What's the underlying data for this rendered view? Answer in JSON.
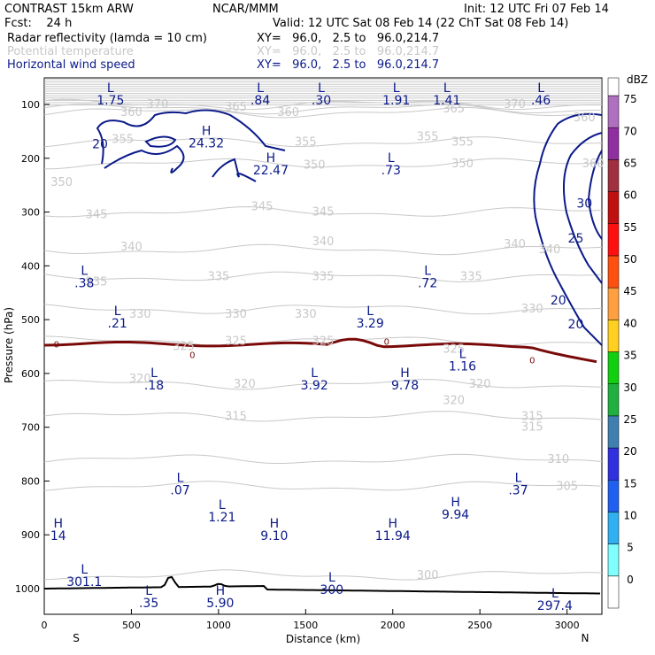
{
  "header": {
    "title": "CONTRAST 15km ARW",
    "center": "NCAR/MMM",
    "init": "Init: 12 UTC Fri 07 Feb 14",
    "fcst": "Fcst:    24 h",
    "valid": "Valid: 12 UTC Sat 08 Feb 14 (22 ChT Sat 08 Feb 14)"
  },
  "fields": [
    {
      "name": "Radar reflectivity (lamda = 10 cm)",
      "xy": "XY=   96.0,   2.5 to   96.0,214.7"
    },
    {
      "name": "Potential temperature",
      "xy": "XY=   96.0,   2.5 to   96.0,214.7"
    },
    {
      "name": "Horizontal wind speed",
      "xy": "XY=   96.0,   2.5 to   96.0,214.7"
    }
  ],
  "colors": {
    "theta": "#c8c8c8",
    "wind": "#0b1a8a",
    "zero_line": "#7a0a0a",
    "terrain": "#000000"
  },
  "chart_data": {
    "type": "cross-section",
    "xlabel": "Distance (km)",
    "ylabel": "Pressure (hPa)",
    "xlim": [
      0,
      3200
    ],
    "ylim": [
      1050,
      50
    ],
    "xticks": [
      0,
      500,
      1000,
      1500,
      2000,
      2500,
      3000
    ],
    "yticks": [
      100,
      200,
      300,
      400,
      500,
      600,
      700,
      800,
      900,
      1000
    ],
    "x_end_labels": {
      "left": "S",
      "right": "N"
    },
    "colorbar": {
      "unit": "dBZ",
      "levels": [
        0,
        5,
        10,
        15,
        20,
        25,
        30,
        35,
        40,
        45,
        50,
        55,
        60,
        65,
        70,
        75
      ],
      "colors": [
        "#ffffff",
        "#80ffff",
        "#30b0f0",
        "#2060f0",
        "#3030e0",
        "#4080b0",
        "#20b040",
        "#10d010",
        "#ffd020",
        "#ffa040",
        "#ff5010",
        "#ff1010",
        "#c01010",
        "#a03040",
        "#9030a0",
        "#b070c0"
      ]
    },
    "theta_contours": [
      {
        "label": "300",
        "x": 2200,
        "p": 975
      },
      {
        "label": "305",
        "x": 3000,
        "p": 810
      },
      {
        "label": "310",
        "x": 2950,
        "p": 760
      },
      {
        "label": "315",
        "x": 2800,
        "p": 680
      },
      {
        "label": "320",
        "x": 2500,
        "p": 620
      },
      {
        "label": "325",
        "x": 1600,
        "p": 540
      },
      {
        "label": "330",
        "x": 2800,
        "p": 480
      },
      {
        "label": "335",
        "x": 1600,
        "p": 420
      },
      {
        "label": "340",
        "x": 2900,
        "p": 370
      },
      {
        "label": "345",
        "x": 1600,
        "p": 300
      },
      {
        "label": "350",
        "x": 2400,
        "p": 210
      },
      {
        "label": "355",
        "x": 2400,
        "p": 170
      },
      {
        "label": "360",
        "x": 1400,
        "p": 115
      },
      {
        "label": "365",
        "x": 2350,
        "p": 108
      },
      {
        "label": "370",
        "x": 2700,
        "p": 100
      }
    ],
    "theta_extra_labels": [
      {
        "label": "350",
        "x": 100,
        "p": 245
      },
      {
        "label": "345",
        "x": 300,
        "p": 305
      },
      {
        "label": "340",
        "x": 500,
        "p": 365
      },
      {
        "label": "335",
        "x": 1000,
        "p": 420
      },
      {
        "label": "330",
        "x": 1100,
        "p": 490
      },
      {
        "label": "325",
        "x": 1100,
        "p": 540
      },
      {
        "label": "320",
        "x": 1150,
        "p": 620
      },
      {
        "label": "315",
        "x": 1100,
        "p": 680
      },
      {
        "label": "320",
        "x": 2350,
        "p": 650
      },
      {
        "label": "315",
        "x": 2800,
        "p": 700
      },
      {
        "label": "335",
        "x": 2450,
        "p": 420
      },
      {
        "label": "345",
        "x": 1250,
        "p": 290
      },
      {
        "label": "340",
        "x": 1600,
        "p": 355
      },
      {
        "label": "330",
        "x": 1500,
        "p": 490
      },
      {
        "label": "325",
        "x": 2350,
        "p": 555
      },
      {
        "label": "350",
        "x": 1550,
        "p": 213
      },
      {
        "label": "355",
        "x": 1500,
        "p": 170
      },
      {
        "label": "355",
        "x": 2200,
        "p": 160
      },
      {
        "label": "325",
        "x": 800,
        "p": 550
      },
      {
        "label": "360",
        "x": 500,
        "p": 115
      },
      {
        "label": "365",
        "x": 1100,
        "p": 105
      },
      {
        "label": "355",
        "x": 450,
        "p": 165
      },
      {
        "label": "360",
        "x": 3100,
        "p": 125
      },
      {
        "label": "360",
        "x": 3150,
        "p": 210
      },
      {
        "label": "330",
        "x": 550,
        "p": 490
      },
      {
        "label": "320",
        "x": 550,
        "p": 610
      },
      {
        "label": "340",
        "x": 2700,
        "p": 360
      },
      {
        "label": "335",
        "x": 300,
        "p": 430
      },
      {
        "label": "370",
        "x": 650,
        "p": 100
      }
    ],
    "wind_contours": [
      {
        "label": "20",
        "x": 320,
        "p": 175
      },
      {
        "label": "30",
        "x": 3100,
        "p": 285
      },
      {
        "label": "25",
        "x": 3050,
        "p": 350
      },
      {
        "label": "20",
        "x": 2950,
        "p": 465
      },
      {
        "label": "20",
        "x": 3050,
        "p": 510
      }
    ],
    "zero_line_labels": [
      {
        "label": "0",
        "x": 70,
        "p": 545
      },
      {
        "label": "0",
        "x": 850,
        "p": 565
      },
      {
        "label": "0",
        "x": 1965,
        "p": 540
      },
      {
        "label": "0",
        "x": 2800,
        "p": 575
      }
    ],
    "extrema": [
      {
        "type": "L",
        "value": "1.75",
        "x": 380,
        "p": 80
      },
      {
        "type": "L",
        "value": ".84",
        "x": 1240,
        "p": 80
      },
      {
        "type": "L",
        "value": ".30",
        "x": 1590,
        "p": 80
      },
      {
        "type": "L",
        "value": "1.91",
        "x": 2020,
        "p": 80
      },
      {
        "type": "L",
        "value": "1.41",
        "x": 2310,
        "p": 80
      },
      {
        "type": "L",
        "value": ".46",
        "x": 2850,
        "p": 80
      },
      {
        "type": "H",
        "value": "24.32",
        "x": 930,
        "p": 160
      },
      {
        "type": "H",
        "value": "22.47",
        "x": 1300,
        "p": 210
      },
      {
        "type": "L",
        "value": ".73",
        "x": 1990,
        "p": 210
      },
      {
        "type": "L",
        "value": ".38",
        "x": 230,
        "p": 420
      },
      {
        "type": "L",
        "value": ".72",
        "x": 2200,
        "p": 420
      },
      {
        "type": "L",
        "value": ".21",
        "x": 420,
        "p": 495
      },
      {
        "type": "L",
        "value": "3.29",
        "x": 1870,
        "p": 495
      },
      {
        "type": "L",
        "value": "1.16",
        "x": 2400,
        "p": 575
      },
      {
        "type": "L",
        "value": ".18",
        "x": 630,
        "p": 610
      },
      {
        "type": "L",
        "value": "3.92",
        "x": 1550,
        "p": 610
      },
      {
        "type": "H",
        "value": "9.78",
        "x": 2070,
        "p": 610
      },
      {
        "type": "L",
        "value": ".07",
        "x": 780,
        "p": 805
      },
      {
        "type": "L",
        "value": ".37",
        "x": 2720,
        "p": 805
      },
      {
        "type": "H",
        "value": "9.94",
        "x": 2360,
        "p": 850
      },
      {
        "type": "L",
        "value": "1.21",
        "x": 1020,
        "p": 855
      },
      {
        "type": "H",
        "value": "14",
        "x": 80,
        "p": 890
      },
      {
        "type": "H",
        "value": "9.10",
        "x": 1320,
        "p": 890
      },
      {
        "type": "H",
        "value": "11.94",
        "x": 2000,
        "p": 890
      },
      {
        "type": "L",
        "value": "301.1",
        "x": 230,
        "p": 975
      },
      {
        "type": "L",
        "value": "300",
        "x": 1650,
        "p": 990
      },
      {
        "type": "L",
        "value": ".35",
        "x": 600,
        "p": 1015
      },
      {
        "type": "H",
        "value": "5.90",
        "x": 1010,
        "p": 1015
      },
      {
        "type": "L",
        "value": "297.4",
        "x": 2930,
        "p": 1020
      }
    ]
  }
}
